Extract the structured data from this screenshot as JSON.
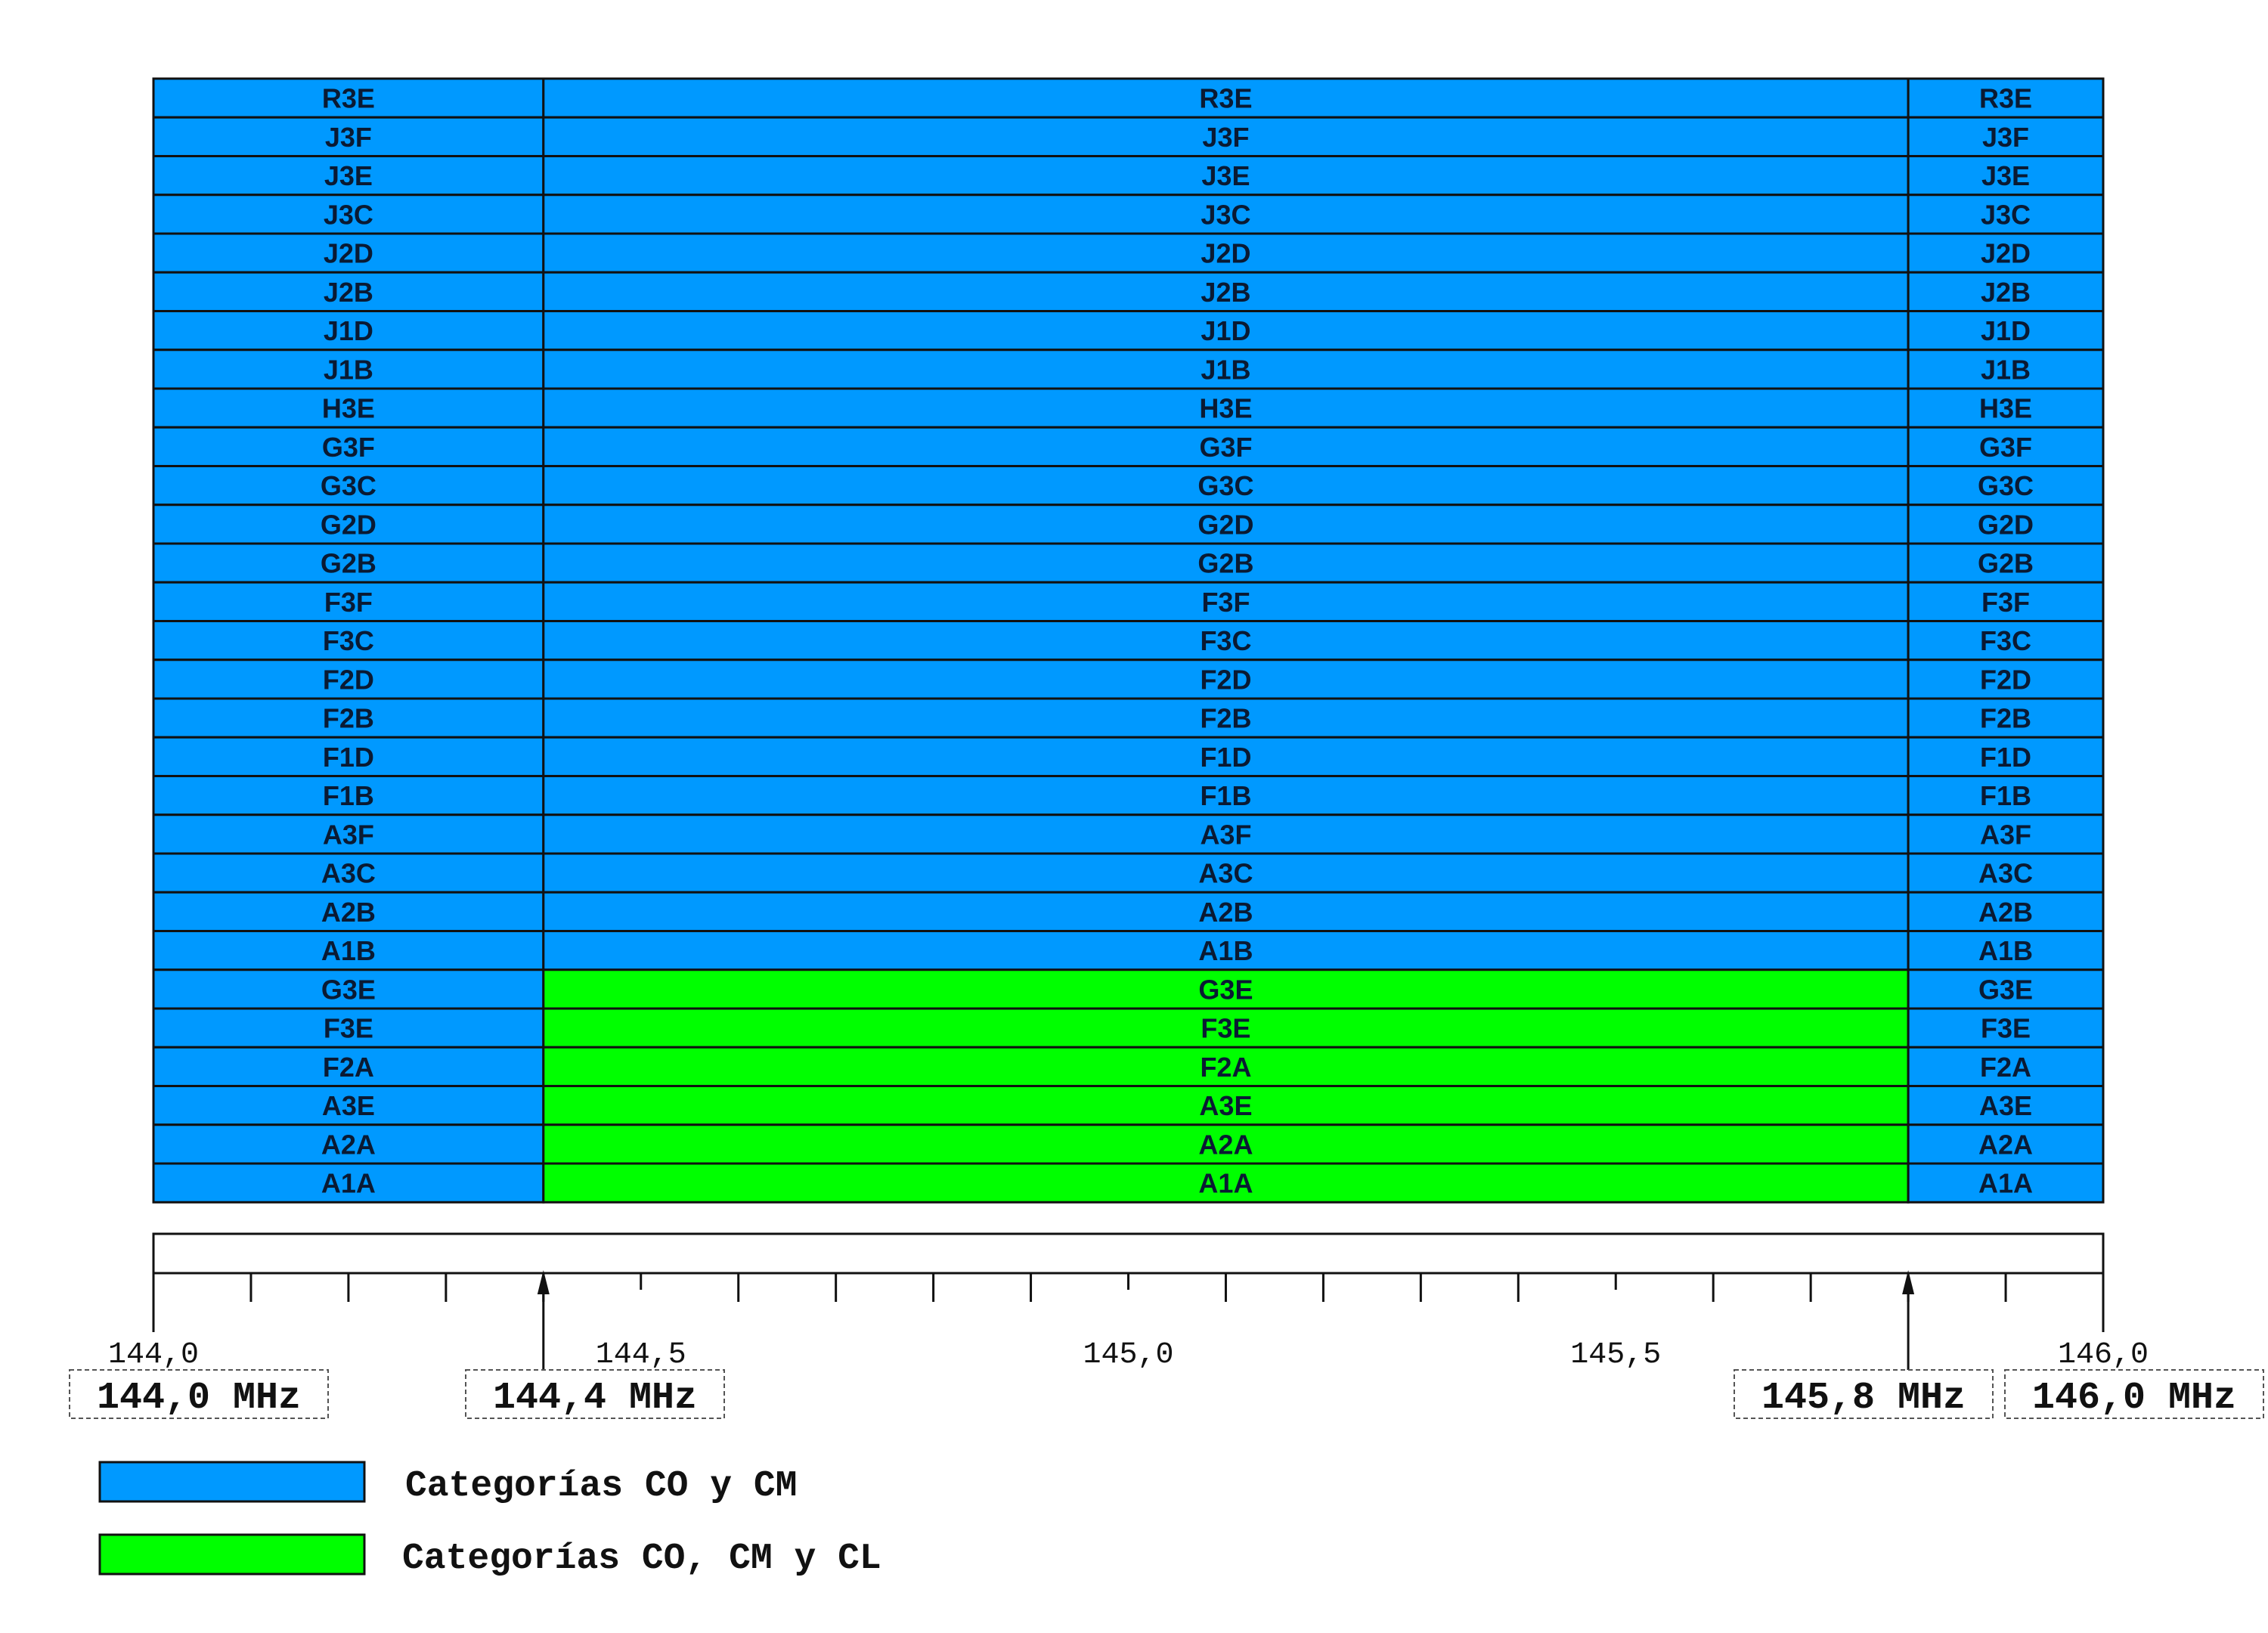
{
  "colors": {
    "co_cm": "#0099ff",
    "co_cm_cl": "#00ff00",
    "border": "#111111"
  },
  "band": {
    "freq_min": 144.0,
    "freq_max": 146.0,
    "column_boundaries_mhz": [
      144.0,
      144.4,
      145.8,
      146.0
    ],
    "rows": [
      {
        "mode": "R3E",
        "middle_category": "co_cm"
      },
      {
        "mode": "J3F",
        "middle_category": "co_cm"
      },
      {
        "mode": "J3E",
        "middle_category": "co_cm"
      },
      {
        "mode": "J3C",
        "middle_category": "co_cm"
      },
      {
        "mode": "J2D",
        "middle_category": "co_cm"
      },
      {
        "mode": "J2B",
        "middle_category": "co_cm"
      },
      {
        "mode": "J1D",
        "middle_category": "co_cm"
      },
      {
        "mode": "J1B",
        "middle_category": "co_cm"
      },
      {
        "mode": "H3E",
        "middle_category": "co_cm"
      },
      {
        "mode": "G3F",
        "middle_category": "co_cm"
      },
      {
        "mode": "G3C",
        "middle_category": "co_cm"
      },
      {
        "mode": "G2D",
        "middle_category": "co_cm"
      },
      {
        "mode": "G2B",
        "middle_category": "co_cm"
      },
      {
        "mode": "F3F",
        "middle_category": "co_cm"
      },
      {
        "mode": "F3C",
        "middle_category": "co_cm"
      },
      {
        "mode": "F2D",
        "middle_category": "co_cm"
      },
      {
        "mode": "F2B",
        "middle_category": "co_cm"
      },
      {
        "mode": "F1D",
        "middle_category": "co_cm"
      },
      {
        "mode": "F1B",
        "middle_category": "co_cm"
      },
      {
        "mode": "A3F",
        "middle_category": "co_cm"
      },
      {
        "mode": "A3C",
        "middle_category": "co_cm"
      },
      {
        "mode": "A2B",
        "middle_category": "co_cm"
      },
      {
        "mode": "A1B",
        "middle_category": "co_cm"
      },
      {
        "mode": "G3E",
        "middle_category": "co_cm_cl"
      },
      {
        "mode": "F3E",
        "middle_category": "co_cm_cl"
      },
      {
        "mode": "F2A",
        "middle_category": "co_cm_cl"
      },
      {
        "mode": "A3E",
        "middle_category": "co_cm_cl"
      },
      {
        "mode": "A2A",
        "middle_category": "co_cm_cl"
      },
      {
        "mode": "A1A",
        "middle_category": "co_cm_cl"
      }
    ]
  },
  "axis": {
    "tick_step_mhz": 0.1,
    "labeled_ticks": [
      {
        "value": 144.0,
        "label": "144,0"
      },
      {
        "value": 144.5,
        "label": "144,5"
      },
      {
        "value": 145.0,
        "label": "145,0"
      },
      {
        "value": 145.5,
        "label": "145,5"
      },
      {
        "value": 146.0,
        "label": "146,0"
      }
    ],
    "arrow_marks_mhz": [
      144.4,
      145.8
    ]
  },
  "freq_labels": [
    "144,0 MHz",
    "144,4 MHz",
    "145,8 MHz",
    "146,0 MHz"
  ],
  "legend": [
    {
      "category": "co_cm",
      "label": "Categorías CO y CM"
    },
    {
      "category": "co_cm_cl",
      "label": "Categorías CO, CM y CL"
    }
  ]
}
